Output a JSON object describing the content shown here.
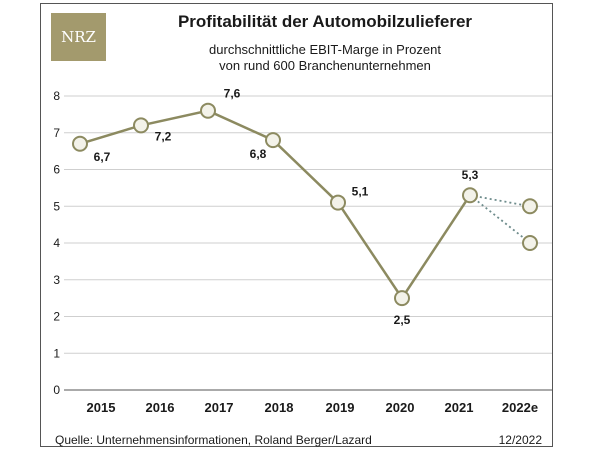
{
  "logo_text": "NRZ",
  "chart_data": {
    "type": "line",
    "title": "Profitabilität der Automobilzulieferer",
    "subtitle_line1": "durchschnittliche EBIT-Marge in Prozent",
    "subtitle_line2": "von rund 600 Branchenunternehmen",
    "categories": [
      "2015",
      "2016",
      "2017",
      "2018",
      "2019",
      "2020",
      "2021",
      "2022e"
    ],
    "series": [
      {
        "name": "EBIT-Marge",
        "values": [
          6.7,
          7.2,
          7.6,
          6.8,
          5.1,
          2.5,
          5.3,
          null
        ],
        "labels": [
          "6,7",
          "7,2",
          "7,6",
          "6,8",
          "5,1",
          "2,5",
          "5,3",
          ""
        ]
      }
    ],
    "forecast": {
      "from": "2021",
      "to": "2022e",
      "values": [
        5.0,
        4.0
      ]
    },
    "yticks": [
      "0",
      "1",
      "2",
      "3",
      "4",
      "5",
      "6",
      "7",
      "8"
    ],
    "ylim": [
      0,
      8
    ],
    "grid": true,
    "line_color": "#8c8a60",
    "forecast_color": "#6e8c8c"
  },
  "source": "Quelle: Unternehmensinformationen, Roland Berger/Lazard",
  "date": "12/2022"
}
